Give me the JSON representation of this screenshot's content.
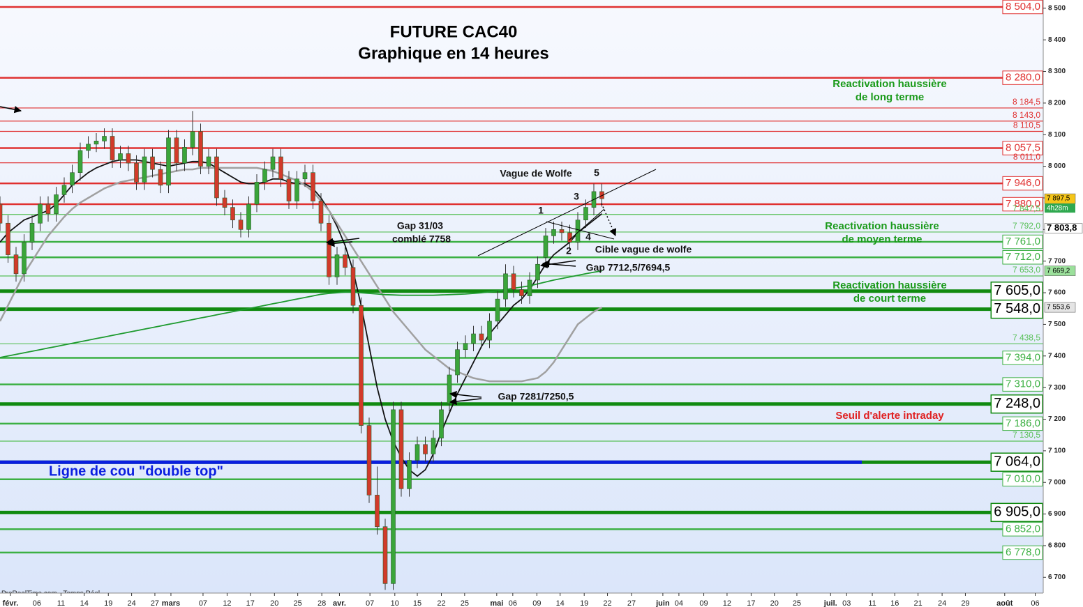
{
  "chart_data": {
    "type": "candlestick",
    "title": "FUTURE CAC40",
    "subtitle": "Graphique en 14 heures",
    "xlim": [
      0,
      130
    ],
    "ylim": [
      6650,
      8526
    ],
    "open": [
      7880,
      7820,
      7720,
      7660,
      7760,
      7820,
      7880,
      7850,
      7910,
      7940,
      7980,
      8050,
      8070,
      8080,
      8095,
      8020,
      8040,
      8010,
      7950,
      8030,
      7990,
      7940,
      8090,
      8010,
      8060,
      8110,
      8000,
      8030,
      7900,
      7870,
      7830,
      7800,
      7880,
      7950,
      7990,
      8030,
      7960,
      7890,
      7960,
      7980,
      7890,
      7820,
      7650,
      7720,
      7680,
      7560,
      7180,
      6960,
      6860,
      6680,
      7230,
      6980,
      7070,
      7120,
      7090,
      7140,
      7250,
      7340,
      7420,
      7440,
      7470,
      7450,
      7510,
      7580,
      7660,
      7610,
      7590,
      7640,
      7712,
      7780,
      7800,
      7790,
      7760,
      7830,
      7870,
      7920
    ],
    "high": [
      7905,
      7845,
      7745,
      7785,
      7845,
      7905,
      7905,
      7935,
      7965,
      8005,
      8075,
      8095,
      8105,
      8120,
      8120,
      8065,
      8065,
      8035,
      8055,
      8055,
      8015,
      8115,
      8115,
      8085,
      8175,
      8135,
      8055,
      8055,
      7925,
      7895,
      7855,
      7905,
      7975,
      8015,
      8055,
      8055,
      7985,
      7985,
      8005,
      8005,
      7915,
      7845,
      7745,
      7745,
      7705,
      7585,
      7205,
      7050,
      6885,
      7255,
      7255,
      7095,
      7145,
      7145,
      7165,
      7255,
      7365,
      7445,
      7465,
      7495,
      7495,
      7535,
      7605,
      7690,
      7685,
      7635,
      7665,
      7715,
      7805,
      7825,
      7825,
      7815,
      7855,
      7895,
      7945,
      7945
    ],
    "low": [
      7795,
      7695,
      7635,
      7635,
      7735,
      7795,
      7825,
      7825,
      7885,
      7915,
      7955,
      8025,
      8045,
      8055,
      7995,
      7995,
      7985,
      7925,
      7925,
      7965,
      7915,
      7915,
      7985,
      7985,
      8035,
      7975,
      7975,
      7875,
      7845,
      7805,
      7775,
      7775,
      7855,
      7925,
      7965,
      7935,
      7865,
      7865,
      7935,
      7865,
      7795,
      7625,
      7625,
      7655,
      7535,
      7155,
      6935,
      6835,
      6660,
      6660,
      6955,
      6955,
      7045,
      7065,
      7065,
      7115,
      7225,
      7315,
      7395,
      7415,
      7425,
      7425,
      7485,
      7555,
      7585,
      7565,
      7565,
      7615,
      7690,
      7755,
      7765,
      7735,
      7735,
      7805,
      7845,
      7872.5
    ],
    "close": [
      7820,
      7720,
      7660,
      7760,
      7820,
      7880,
      7850,
      7910,
      7940,
      7980,
      8050,
      8070,
      8080,
      8095,
      8020,
      8040,
      8010,
      7950,
      8030,
      7990,
      7940,
      8090,
      8010,
      8060,
      8110,
      8000,
      8030,
      7900,
      7870,
      7830,
      7800,
      7880,
      7950,
      7990,
      8030,
      7960,
      7890,
      7960,
      7980,
      7890,
      7820,
      7650,
      7720,
      7680,
      7560,
      7180,
      6960,
      6860,
      6680,
      7230,
      6980,
      7070,
      7120,
      7090,
      7140,
      7230,
      7340,
      7420,
      7440,
      7470,
      7450,
      7510,
      7580,
      7660,
      7610,
      7590,
      7640,
      7690,
      7780,
      7800,
      7790,
      7760,
      7830,
      7870,
      7920,
      7897.5
    ],
    "up_color": "#3aa53a",
    "down_color": "#d23a2a",
    "series": [
      {
        "color": "#111111",
        "values": [
          7760,
          7790,
          7810,
          7830,
          7840,
          7850,
          7860,
          7880,
          7910,
          7940,
          7960,
          7980,
          7995,
          8005,
          8015,
          8020,
          8020,
          8020,
          8015,
          8010,
          8005,
          8000,
          8005,
          8010,
          8015,
          8015,
          8010,
          7995,
          7980,
          7965,
          7950,
          7945,
          7945,
          7950,
          7960,
          7960,
          7950,
          7945,
          7945,
          7930,
          7900,
          7860,
          7810,
          7750,
          7670,
          7560,
          7430,
          7300,
          7200,
          7130,
          7080,
          7040,
          7020,
          7040,
          7090,
          7160,
          7220,
          7280,
          7330,
          7380,
          7430,
          7470,
          7500,
          7530,
          7560,
          7580,
          7610,
          7650,
          7690,
          7720,
          7740,
          7760,
          7790,
          7810,
          7830,
          7850
        ]
      },
      {
        "color": "#a0a0a0",
        "values": [
          7510,
          7560,
          7610,
          7660,
          7700,
          7740,
          7780,
          7810,
          7840,
          7865,
          7885,
          7900,
          7915,
          7930,
          7940,
          7950,
          7955,
          7960,
          7965,
          7970,
          7975,
          7980,
          7985,
          7990,
          7990,
          7995,
          7995,
          7995,
          7995,
          7995,
          7995,
          7995,
          7995,
          7990,
          7985,
          7975,
          7965,
          7955,
          7940,
          7920,
          7890,
          7860,
          7820,
          7780,
          7740,
          7700,
          7660,
          7620,
          7580,
          7540,
          7510,
          7480,
          7450,
          7420,
          7400,
          7380,
          7360,
          7350,
          7340,
          7330,
          7325,
          7320,
          7320,
          7320,
          7320,
          7320,
          7325,
          7330,
          7350,
          7380,
          7420,
          7460,
          7500,
          7520,
          7540,
          7553.6
        ]
      },
      {
        "color": "#1d9a2e",
        "values": [
          7395,
          7400,
          7405,
          7410,
          7415,
          7420,
          7425,
          7430,
          7435,
          7440,
          7445,
          7450,
          7455,
          7460,
          7465,
          7470,
          7475,
          7480,
          7485,
          7490,
          7495,
          7500,
          7505,
          7510,
          7515,
          7520,
          7525,
          7530,
          7535,
          7540,
          7545,
          7550,
          7555,
          7560,
          7565,
          7570,
          7575,
          7580,
          7585,
          7590,
          7595,
          7598,
          7600,
          7602,
          7602,
          7600,
          7598,
          7596,
          7594,
          7593,
          7592,
          7592,
          7592,
          7592,
          7592,
          7593,
          7594,
          7595,
          7596,
          7598,
          7600,
          7603,
          7606,
          7610,
          7614,
          7618,
          7622,
          7628,
          7634,
          7640,
          7645,
          7650,
          7655,
          7660,
          7665,
          7669.2
        ]
      }
    ],
    "yticks": [
      {
        "value": 6700,
        "label": "6 700"
      },
      {
        "value": 6800,
        "label": "6 800"
      },
      {
        "value": 6900,
        "label": "6 900"
      },
      {
        "value": 7000,
        "label": "7 000"
      },
      {
        "value": 7100,
        "label": "7 100"
      },
      {
        "value": 7200,
        "label": "7 200"
      },
      {
        "value": 7300,
        "label": "7 300"
      },
      {
        "value": 7400,
        "label": "7 400"
      },
      {
        "value": 7500,
        "label": "7 500"
      },
      {
        "value": 7600,
        "label": "7 600"
      },
      {
        "value": 7700,
        "label": "7 700"
      },
      {
        "value": 7800,
        "label": "7 800"
      },
      {
        "value": 7900,
        "label": "7 900"
      },
      {
        "value": 8000,
        "label": "8 000"
      },
      {
        "value": 8100,
        "label": "8 100"
      },
      {
        "value": 8200,
        "label": "8 200"
      },
      {
        "value": 8300,
        "label": "8 300"
      },
      {
        "value": 8400,
        "label": "8 400"
      },
      {
        "value": 8500,
        "label": "8 500"
      }
    ],
    "xticks": [
      {
        "value": 1.3,
        "label": "févr."
      },
      {
        "value": 4.6,
        "label": "06"
      },
      {
        "value": 7.6,
        "label": "11"
      },
      {
        "value": 10.5,
        "label": "14"
      },
      {
        "value": 13.5,
        "label": "19"
      },
      {
        "value": 16.4,
        "label": "24"
      },
      {
        "value": 19.3,
        "label": "27"
      },
      {
        "value": 21.3,
        "label": "mars"
      },
      {
        "value": 25.3,
        "label": "07"
      },
      {
        "value": 28.3,
        "label": "12"
      },
      {
        "value": 31.2,
        "label": "17"
      },
      {
        "value": 34.2,
        "label": "20"
      },
      {
        "value": 37.1,
        "label": "25"
      },
      {
        "value": 40.1,
        "label": "28"
      },
      {
        "value": 42.3,
        "label": "avr."
      },
      {
        "value": 46.1,
        "label": "07"
      },
      {
        "value": 49.2,
        "label": "10"
      },
      {
        "value": 52,
        "label": "15"
      },
      {
        "value": 55,
        "label": "22"
      },
      {
        "value": 57.9,
        "label": "25"
      },
      {
        "value": 61.9,
        "label": "mai"
      },
      {
        "value": 63.9,
        "label": "06"
      },
      {
        "value": 66.9,
        "label": "09"
      },
      {
        "value": 69.8,
        "label": "14"
      },
      {
        "value": 72.8,
        "label": "19"
      },
      {
        "value": 75.7,
        "label": "22"
      },
      {
        "value": 78.7,
        "label": "27"
      },
      {
        "value": 82.6,
        "label": "juin"
      },
      {
        "value": 84.6,
        "label": "04"
      },
      {
        "value": 87.7,
        "label": "09"
      },
      {
        "value": 90.6,
        "label": "12"
      },
      {
        "value": 93.6,
        "label": "17"
      },
      {
        "value": 96.5,
        "label": "20"
      },
      {
        "value": 99.3,
        "label": "25"
      },
      {
        "value": 103.5,
        "label": "juil."
      },
      {
        "value": 105.5,
        "label": "03"
      },
      {
        "value": 108.7,
        "label": "11"
      },
      {
        "value": 111.5,
        "label": "16"
      },
      {
        "value": 114.4,
        "label": "21"
      },
      {
        "value": 117.4,
        "label": "24"
      },
      {
        "value": 120.3,
        "label": "29"
      },
      {
        "value": 125.2,
        "label": "août"
      },
      {
        "value": 129,
        "label": "06"
      }
    ],
    "levels": [
      {
        "value": 8504,
        "label": "8 504,0",
        "color": "#e03030",
        "style": "boxed"
      },
      {
        "value": 8280,
        "label": "8 280,0",
        "color": "#e03030",
        "style": "boxed"
      },
      {
        "value": 8184.5,
        "label": "8 184,5",
        "color": "#e03030",
        "style": "minor"
      },
      {
        "value": 8143,
        "label": "8 143,0",
        "color": "#e03030",
        "style": "minor"
      },
      {
        "value": 8110.5,
        "label": "8 110,5",
        "color": "#e03030",
        "style": "minor"
      },
      {
        "value": 8057.5,
        "label": "8 057,5",
        "color": "#e03030",
        "style": "boxed"
      },
      {
        "value": 8011,
        "label": "8 011,0",
        "color": "#e03030",
        "style": "minor"
      },
      {
        "value": 7946,
        "label": "7 946,0",
        "color": "#e03030",
        "style": "boxed"
      },
      {
        "value": 7880,
        "label": "7 880,0",
        "color": "#e03030",
        "style": "boxed"
      },
      {
        "value": 7847.5,
        "label": "7 847,5",
        "color": "#58c058",
        "style": "minor"
      },
      {
        "value": 7792,
        "label": "7 792,0",
        "color": "#58c058",
        "style": "minor"
      },
      {
        "value": 7761,
        "label": "7 761,0",
        "color": "#3cb043",
        "style": "boxed"
      },
      {
        "value": 7712,
        "label": "7 712,0",
        "color": "#3cb043",
        "style": "boxed"
      },
      {
        "value": 7653,
        "label": "7 653,0",
        "color": "#58c058",
        "style": "minor"
      },
      {
        "value": 7605,
        "label": "7 605,0",
        "color": "#108a10",
        "style": "major"
      },
      {
        "value": 7548,
        "label": "7 548,0",
        "color": "#108a10",
        "style": "major"
      },
      {
        "value": 7438.5,
        "label": "7 438,5",
        "color": "#58c058",
        "style": "minor"
      },
      {
        "value": 7394,
        "label": "7 394,0",
        "color": "#3cb043",
        "style": "boxed"
      },
      {
        "value": 7310,
        "label": "7 310,0",
        "color": "#3cb043",
        "style": "boxed"
      },
      {
        "value": 7248,
        "label": "7 248,0",
        "color": "#108a10",
        "style": "major"
      },
      {
        "value": 7186,
        "label": "7 186,0",
        "color": "#3cb043",
        "style": "boxed"
      },
      {
        "value": 7130.5,
        "label": "7 130,5",
        "color": "#58c058",
        "style": "minor"
      },
      {
        "value": 7064,
        "label": "7 064,0",
        "color": "#108a10",
        "style": "major"
      },
      {
        "value": 7010,
        "label": "7 010,0",
        "color": "#3cb043",
        "style": "boxed"
      },
      {
        "value": 6905,
        "label": "6 905,0",
        "color": "#108a10",
        "style": "major"
      },
      {
        "value": 6852,
        "label": "6 852,0",
        "color": "#3cb043",
        "style": "boxed"
      },
      {
        "value": 6778,
        "label": "6 778,0",
        "color": "#3cb043",
        "style": "boxed"
      }
    ],
    "neckline": {
      "value": 7064,
      "label": "Ligne de cou \"double top\"",
      "color": "#0a1ee0"
    },
    "price_tags": [
      {
        "value": 7897.5,
        "label": "7 897,5",
        "color": "#f5c518"
      },
      {
        "value": 7803.8,
        "label": "7 803,8",
        "color": "#ffffff"
      },
      {
        "value": 7669.2,
        "label": "7 669,2",
        "color": "#9be09b"
      },
      {
        "value": 7553.6,
        "label": "7 553,6",
        "color": "#e4e4e4"
      }
    ],
    "countdown": "4h28m",
    "annotations": {
      "long_1": "Reactivation haussière",
      "long_2": "de long terme",
      "mid_1": "Reactivation haussière",
      "mid_2": "de moyen terme",
      "short_1": "Reactivation haussière",
      "short_2": "de court terme",
      "alert": "Seuil d'alerte intraday",
      "wolfe": "Vague de Wolfe",
      "w1": "1",
      "w2": "2",
      "w3": "3",
      "w4": "4",
      "w5": "5",
      "wolfe_target": "Cible vague de wolfe",
      "gap1_1": "Gap 31/03",
      "gap1_2": "comblé 7758",
      "gap2": "Gap 7712,5/7694,5",
      "gap3": "Gap 7281/7250,5",
      "source": "ProRealTime.com - Temps Réel"
    }
  }
}
